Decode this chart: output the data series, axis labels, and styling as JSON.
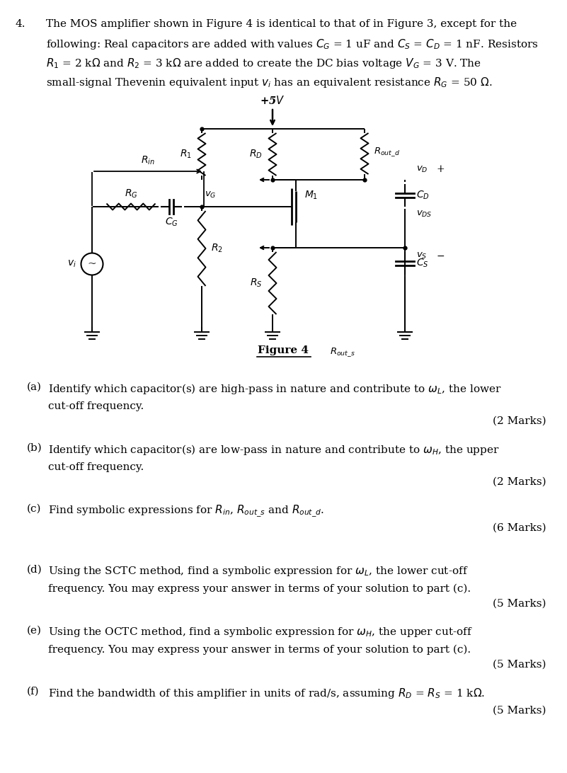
{
  "bg_color": "#ffffff",
  "text_color": "#000000",
  "page_width": 8.01,
  "page_height": 10.92,
  "problem_number": "4.",
  "problem_text_line1": "The MOS amplifier shown in Figure 4 is identical to that of in Figure 3, except for the",
  "problem_text_line2": "following: Real capacitors are added with values $C_G$ = 1 uF and $C_S$ = $C_D$ = 1 nF. Resistors",
  "problem_text_line3": "$R_1$ = 2 k$\\Omega$ and $R_2$ = 3 k$\\Omega$ are added to create the DC bias voltage $V_G$ = 3 V. The",
  "problem_text_line4": "small-signal Thevenin equivalent input $v_i$ has an equivalent resistance $R_G$ = 50 $\\Omega$.",
  "figure_label": "Figure 4",
  "parts": [
    {
      "label": "(a)",
      "text_line1": "Identify which capacitor(s) are high-pass in nature and contribute to $\\omega_L$, the lower",
      "text_line2": "cut-off frequency.",
      "marks": "(2 Marks)"
    },
    {
      "label": "(b)",
      "text_line1": "Identify which capacitor(s) are low-pass in nature and contribute to $\\omega_H$, the upper",
      "text_line2": "cut-off frequency.",
      "marks": "(2 Marks)"
    },
    {
      "label": "(c)",
      "text_line1": "Find symbolic expressions for $R_{in}$, $R_{out\\_s}$ and $R_{out\\_d}$.",
      "text_line2": null,
      "marks": "(6 Marks)"
    },
    {
      "label": "(d)",
      "text_line1": "Using the SCTC method, find a symbolic expression for $\\omega_L$, the lower cut-off",
      "text_line2": "frequency. You may express your answer in terms of your solution to part (c).",
      "marks": "(5 Marks)"
    },
    {
      "label": "(e)",
      "text_line1": "Using the OCTC method, find a symbolic expression for $\\omega_H$, the upper cut-off",
      "text_line2": "frequency. You may express your answer in terms of your solution to part (c).",
      "marks": "(5 Marks)"
    },
    {
      "label": "(f)",
      "text_line1": "Find the bandwidth of this amplifier in units of rad/s, assuming $R_D$ = $R_S$ = 1 k$\\Omega$.",
      "text_line2": null,
      "marks": "(5 Marks)"
    }
  ]
}
